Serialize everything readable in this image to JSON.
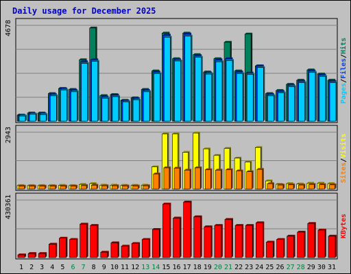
{
  "chart_data": {
    "type": "bar",
    "title": "Daily usage for December 2025",
    "categories": [
      "1",
      "2",
      "3",
      "4",
      "5",
      "6",
      "7",
      "8",
      "9",
      "10",
      "11",
      "12",
      "13",
      "14",
      "15",
      "16",
      "17",
      "18",
      "19",
      "20",
      "21",
      "22",
      "23",
      "24",
      "25",
      "26",
      "27",
      "28",
      "29",
      "30",
      "31"
    ],
    "weekend_categories": [
      "6",
      "7",
      "13",
      "14",
      "20",
      "21",
      "27",
      "28"
    ],
    "panels": [
      {
        "name": "hits-files-pages",
        "ymax": 4678,
        "ymax_label": "4678",
        "grid": true,
        "series": [
          {
            "name": "Hits",
            "color": "#00805c",
            "values": [
              300,
              400,
              400,
              1350,
              1600,
              1550,
              3000,
              4550,
              1250,
              1300,
              1020,
              1140,
              1550,
              2450,
              4300,
              3050,
              4300,
              3250,
              2400,
              3050,
              3850,
              2450,
              4250,
              2700,
              1350,
              1500,
              1800,
              2000,
              2500,
              2300,
              2000
            ]
          },
          {
            "name": "Files",
            "color": "#0040ff",
            "values": [
              280,
              360,
              360,
              1300,
              1580,
              1500,
              2900,
              3000,
              1180,
              1280,
              1000,
              1100,
              1500,
              2400,
              4200,
              3000,
              4250,
              3200,
              2350,
              3000,
              3050,
              2400,
              2350,
              2700,
              1300,
              1450,
              1750,
              1950,
              2450,
              2250,
              1950
            ]
          },
          {
            "name": "Pages",
            "color": "#00ccff",
            "values": [
              250,
              340,
              320,
              1240,
              1520,
              1440,
              2820,
              2920,
              1120,
              1200,
              940,
              1040,
              1440,
              2320,
              4100,
              2940,
              4150,
              3120,
              2300,
              2900,
              2960,
              2320,
              2280,
              2620,
              1240,
              1380,
              1690,
              1880,
              2380,
              2180,
              1880
            ]
          }
        ]
      },
      {
        "name": "visits-sites",
        "ymax": 2943,
        "ymax_label": "2943",
        "grid": true,
        "series": [
          {
            "name": "Visits",
            "color": "#ffff00",
            "values": [
              180,
              180,
              180,
              180,
              190,
              180,
              240,
              280,
              200,
              200,
              190,
              190,
              200,
              1150,
              2850,
              2850,
              1900,
              2900,
              2080,
              1740,
              2100,
              1600,
              1400,
              2150,
              420,
              250,
              280,
              260,
              300,
              300,
              280
            ]
          },
          {
            "name": "Sites",
            "color": "#ff8000",
            "values": [
              150,
              150,
              150,
              150,
              150,
              150,
              180,
              200,
              170,
              170,
              160,
              160,
              170,
              780,
              1100,
              1080,
              980,
              1100,
              1000,
              980,
              1000,
              940,
              900,
              1020,
              280,
              210,
              220,
              210,
              240,
              230,
              220
            ]
          }
        ]
      },
      {
        "name": "kbytes",
        "ymax": 430361,
        "ymax_label": "430361",
        "grid": true,
        "series": [
          {
            "name": "KBytes",
            "color": "#ff0000",
            "values": [
              20000,
              30000,
              30000,
              100000,
              145000,
              135000,
              250000,
              240000,
              40000,
              110000,
              85000,
              105000,
              135000,
              210000,
              400000,
              295000,
              415000,
              305000,
              230000,
              240000,
              285000,
              240000,
              240000,
              260000,
              115000,
              135000,
              160000,
              190000,
              255000,
              205000,
              160000
            ]
          }
        ]
      }
    ],
    "legend_placement": "right-vertical"
  }
}
